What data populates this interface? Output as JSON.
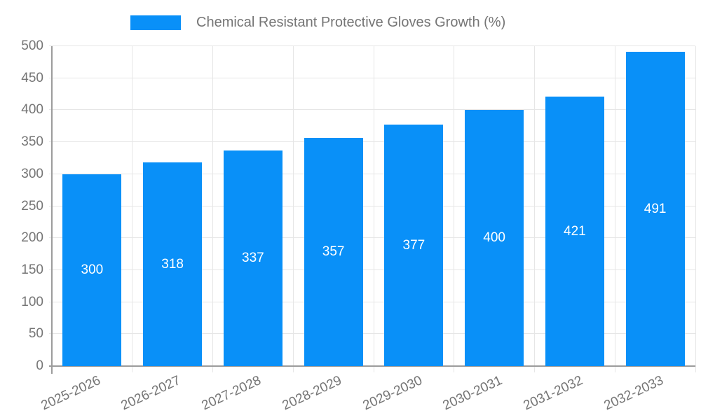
{
  "legend": {
    "label": "Chemical Resistant Protective Gloves Growth (%)"
  },
  "colors": {
    "bar": "#0990F8",
    "grid": "#E6E6E6",
    "axis": "#9C9C9C",
    "text": "#757575",
    "bar_label": "#FFFFFF",
    "background": "#FFFFFF"
  },
  "chart_data": {
    "type": "bar",
    "title": "Chemical Resistant Protective Gloves Growth (%)",
    "categories": [
      "2025-2026",
      "2026-2027",
      "2027-2028",
      "2028-2029",
      "2029-2030",
      "2030-2031",
      "2031-2032",
      "2032-2033"
    ],
    "values": [
      300,
      318,
      337,
      357,
      377,
      400,
      421,
      491
    ],
    "xlabel": "",
    "ylabel": "",
    "ylim": [
      0,
      500
    ],
    "yticks": [
      0,
      50,
      100,
      150,
      200,
      250,
      300,
      350,
      400,
      450,
      500
    ],
    "grid": true,
    "legend_position": "top",
    "x_tick_rotation_deg": -25,
    "bar_labels_inside": true
  }
}
